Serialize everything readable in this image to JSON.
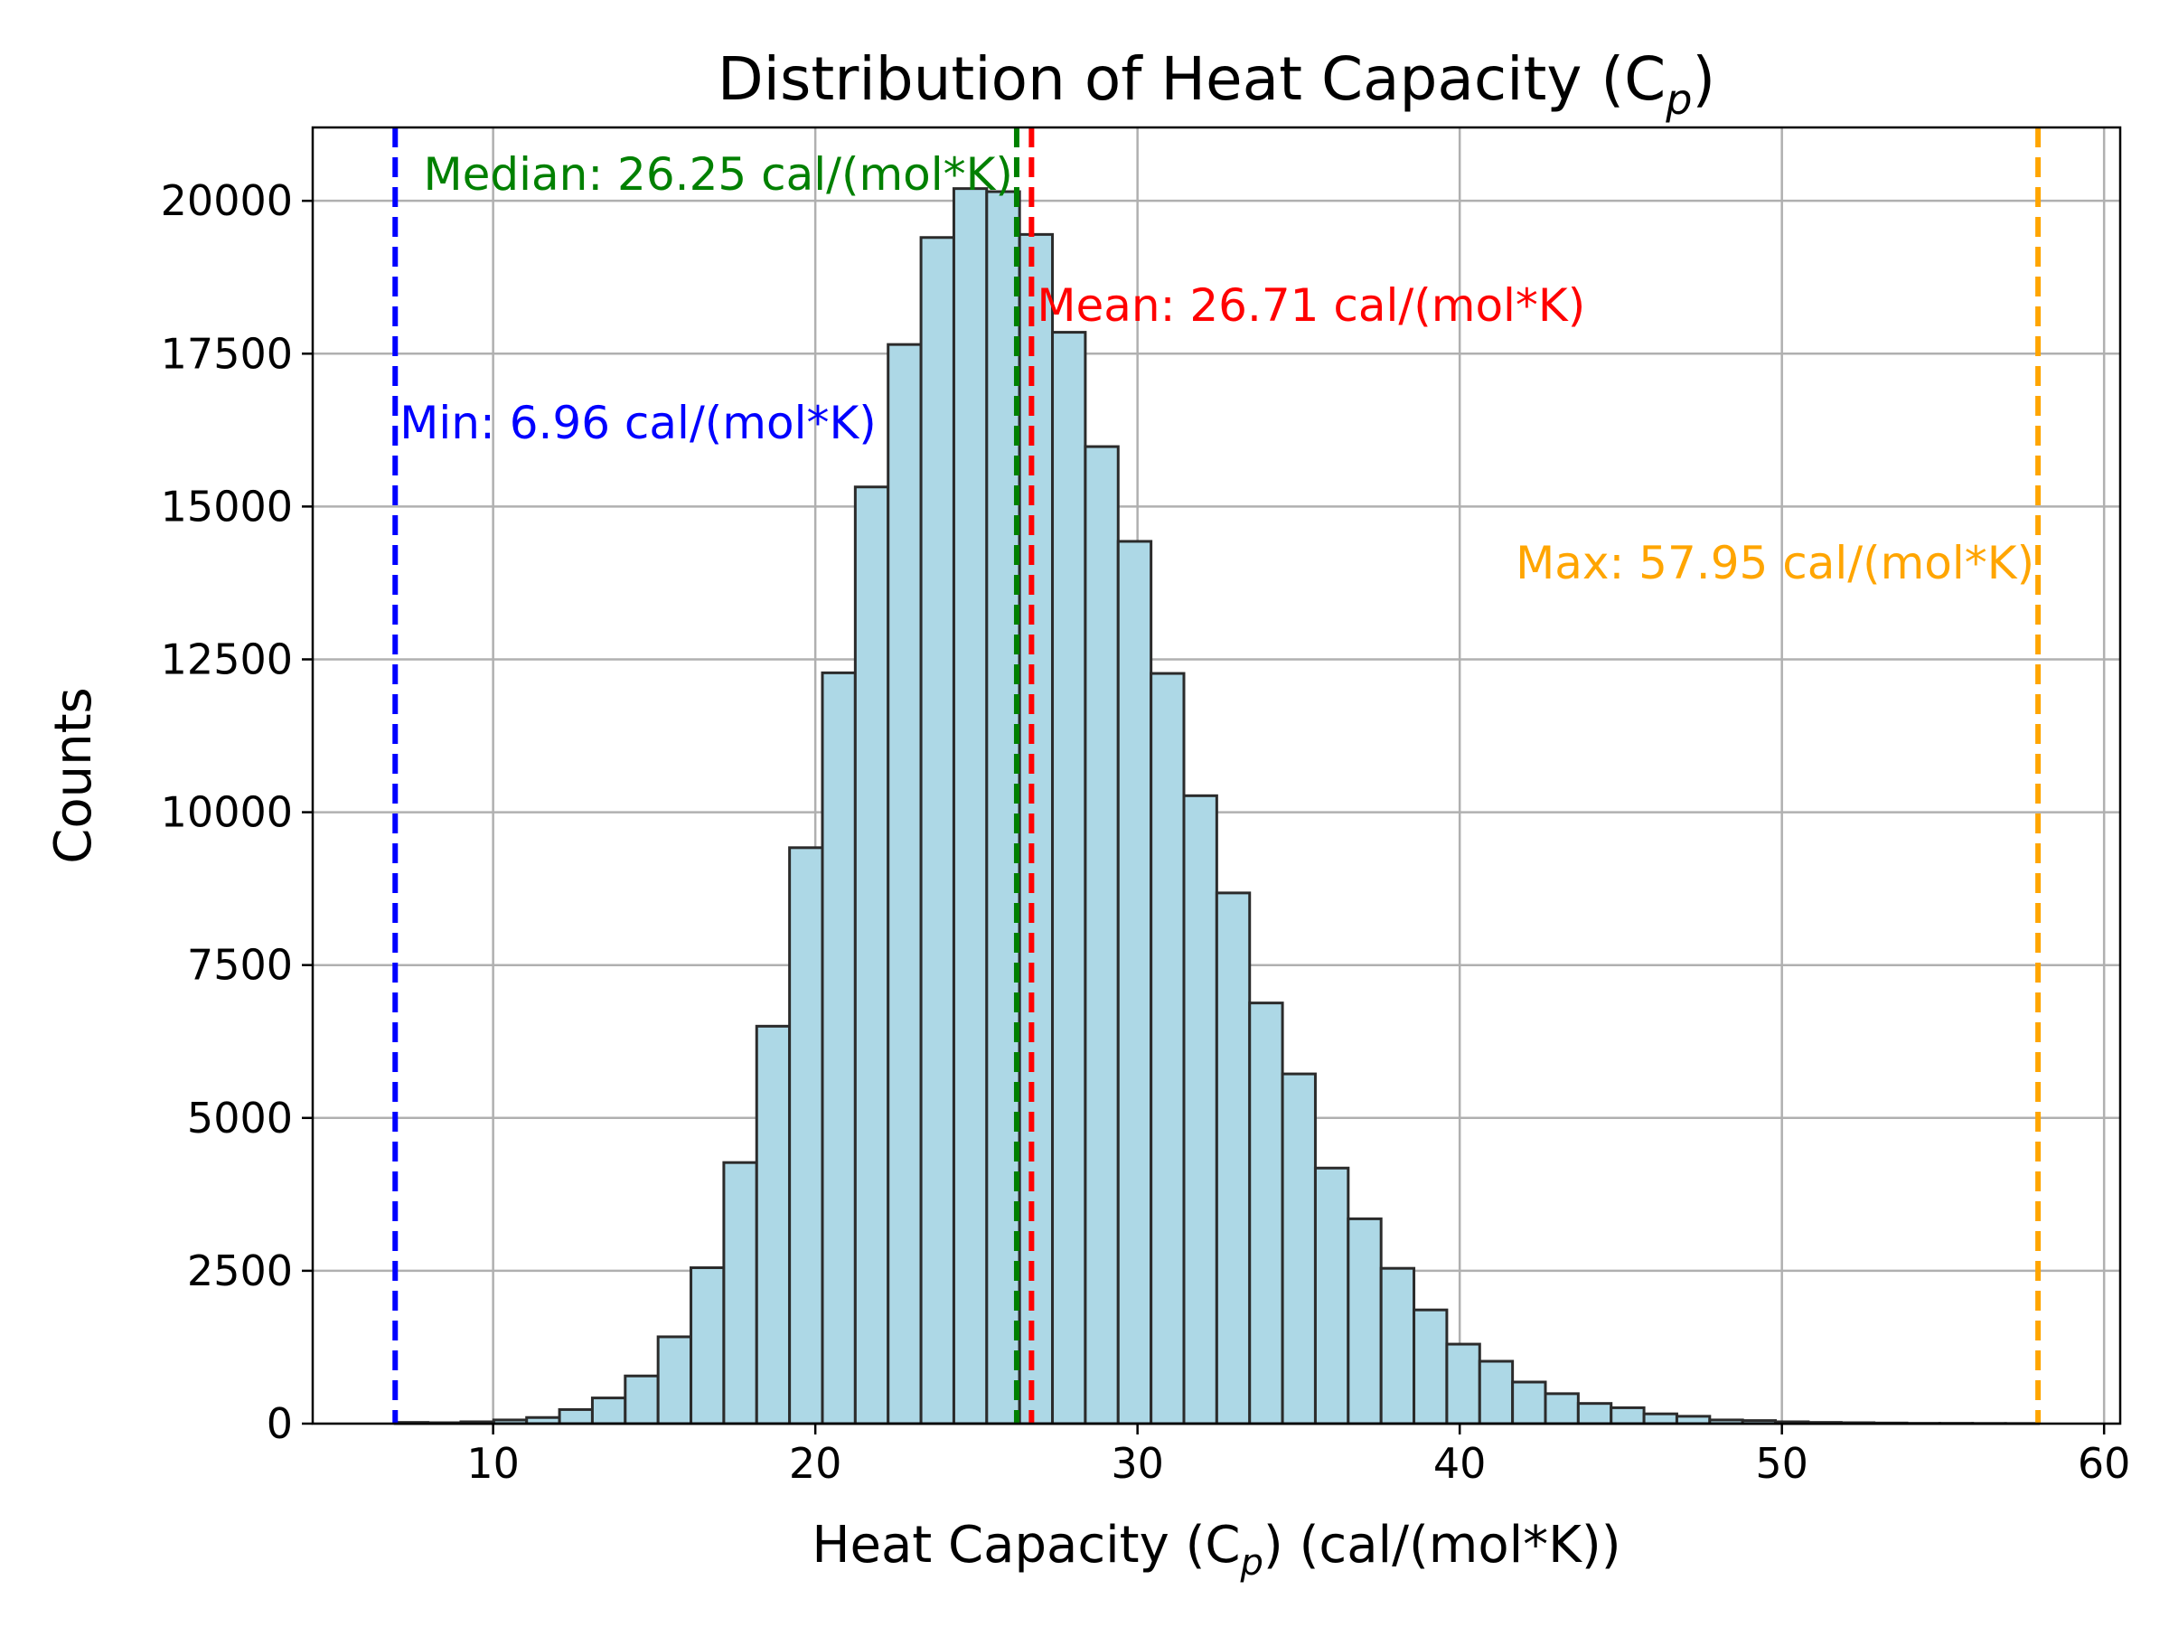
{
  "chart_data": {
    "type": "bar",
    "title_main": "Distribution of Heat Capacity (C",
    "title_sub": "p",
    "title_end": ")",
    "xlabel_main": "Heat Capacity (C",
    "xlabel_sub": "p",
    "xlabel_end": ") (cal/(mol*K))",
    "ylabel": "Counts",
    "xlim": [
      4.4,
      60.5
    ],
    "ylim": [
      0,
      21200
    ],
    "grid": true,
    "xticks": [
      10,
      20,
      30,
      40,
      50,
      60
    ],
    "yticks": [
      0,
      2500,
      5000,
      7500,
      10000,
      12500,
      15000,
      17500,
      20000
    ],
    "bin_start": 6.96,
    "bin_width": 1.02,
    "counts": [
      20,
      15,
      30,
      60,
      100,
      230,
      420,
      780,
      1420,
      2550,
      4270,
      6500,
      9420,
      12280,
      15320,
      17650,
      19400,
      20200,
      20150,
      19450,
      17850,
      15980,
      14430,
      12270,
      10270,
      8680,
      6880,
      5720,
      4180,
      3350,
      2540,
      1860,
      1300,
      1020,
      680,
      490,
      330,
      260,
      160,
      120,
      60,
      50,
      30,
      20,
      15,
      10,
      5,
      5,
      3,
      2
    ],
    "reference_lines": [
      {
        "name": "min",
        "value": 6.96,
        "label": "Min: 6.96 cal/(mol*K)",
        "color": "#0000ff"
      },
      {
        "name": "median",
        "value": 26.25,
        "label": "Median: 26.25 cal/(mol*K)",
        "color": "#008000"
      },
      {
        "name": "mean",
        "value": 26.71,
        "label": "Mean: 26.71 cal/(mol*K)",
        "color": "#ff0000"
      },
      {
        "name": "max",
        "value": 57.95,
        "label": "Max: 57.95 cal/(mol*K)",
        "color": "#ffa500"
      }
    ]
  }
}
